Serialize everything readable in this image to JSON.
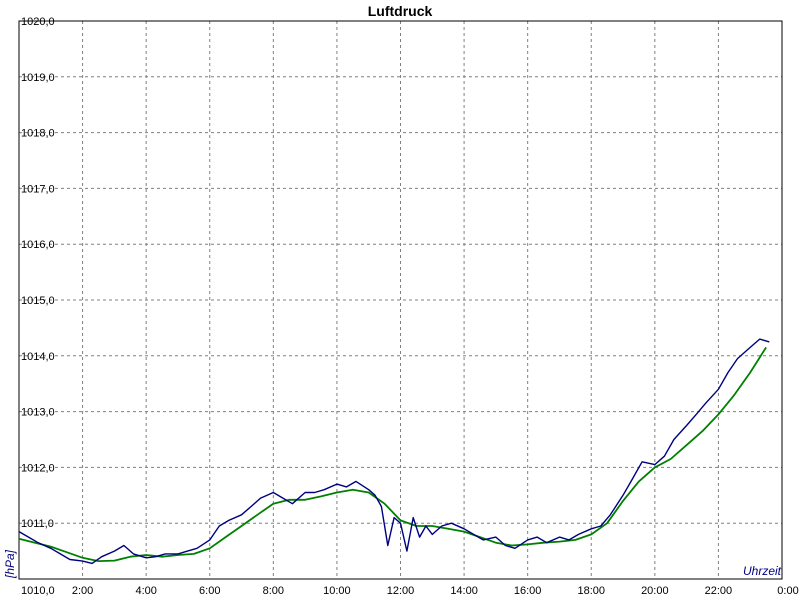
{
  "chart_data": {
    "type": "line",
    "title": "Luftdruck",
    "xlabel": "Uhrzeit",
    "ylabel": "[hPa]",
    "ylim": [
      1010.0,
      1020.0
    ],
    "xlim": [
      0,
      24
    ],
    "grid": true,
    "y_ticks": [
      "1010,0",
      "1011,0",
      "1012,0",
      "1013,0",
      "1014,0",
      "1015,0",
      "1016,0",
      "1017,0",
      "1018,0",
      "1019,0",
      "1020,0"
    ],
    "x_ticks": [
      "2:00",
      "4:00",
      "6:00",
      "8:00",
      "10:00",
      "12:00",
      "14:00",
      "16:00",
      "18:00",
      "20:00",
      "22:00",
      "0:00"
    ],
    "colors": {
      "raw": "#000080",
      "smoothed": "#008000",
      "axis_label": "#000080"
    },
    "series": [
      {
        "role": "raw",
        "x": [
          0.0,
          0.3,
          0.6,
          1.0,
          1.3,
          1.6,
          2.0,
          2.3,
          2.6,
          3.0,
          3.3,
          3.6,
          4.0,
          4.3,
          4.6,
          5.0,
          5.3,
          5.6,
          6.0,
          6.3,
          6.6,
          7.0,
          7.3,
          7.6,
          8.0,
          8.3,
          8.6,
          9.0,
          9.3,
          9.6,
          10.0,
          10.3,
          10.6,
          11.0,
          11.2,
          11.4,
          11.6,
          11.8,
          12.0,
          12.2,
          12.4,
          12.6,
          12.8,
          13.0,
          13.3,
          13.6,
          14.0,
          14.3,
          14.6,
          15.0,
          15.3,
          15.6,
          16.0,
          16.3,
          16.6,
          17.0,
          17.3,
          17.6,
          18.0,
          18.3,
          18.6,
          19.0,
          19.3,
          19.6,
          20.0,
          20.3,
          20.6,
          21.0,
          21.3,
          21.6,
          22.0,
          22.3,
          22.6,
          23.0,
          23.3,
          23.6
        ],
        "y": [
          1010.85,
          1010.75,
          1010.65,
          1010.55,
          1010.45,
          1010.35,
          1010.32,
          1010.28,
          1010.4,
          1010.5,
          1010.6,
          1010.45,
          1010.38,
          1010.4,
          1010.45,
          1010.45,
          1010.5,
          1010.55,
          1010.7,
          1010.95,
          1011.05,
          1011.15,
          1011.3,
          1011.45,
          1011.55,
          1011.45,
          1011.35,
          1011.55,
          1011.55,
          1011.6,
          1011.7,
          1011.65,
          1011.75,
          1011.6,
          1011.5,
          1011.3,
          1010.6,
          1011.1,
          1011.0,
          1010.5,
          1011.1,
          1010.75,
          1010.95,
          1010.8,
          1010.95,
          1011.0,
          1010.9,
          1010.8,
          1010.7,
          1010.75,
          1010.6,
          1010.55,
          1010.7,
          1010.75,
          1010.65,
          1010.75,
          1010.7,
          1010.8,
          1010.9,
          1010.95,
          1011.15,
          1011.5,
          1011.8,
          1012.1,
          1012.05,
          1012.2,
          1012.5,
          1012.75,
          1012.95,
          1013.15,
          1013.4,
          1013.7,
          1013.95,
          1014.15,
          1014.3,
          1014.25
        ]
      },
      {
        "role": "smoothed",
        "x": [
          0.0,
          0.5,
          1.0,
          1.5,
          2.0,
          2.5,
          3.0,
          3.5,
          4.0,
          4.5,
          5.0,
          5.5,
          6.0,
          6.5,
          7.0,
          7.5,
          8.0,
          8.5,
          9.0,
          9.5,
          10.0,
          10.5,
          11.0,
          11.5,
          12.0,
          12.5,
          13.0,
          13.5,
          14.0,
          14.5,
          15.0,
          15.5,
          16.0,
          16.5,
          17.0,
          17.5,
          18.0,
          18.5,
          19.0,
          19.5,
          20.0,
          20.5,
          21.0,
          21.5,
          22.0,
          22.5,
          23.0,
          23.5
        ],
        "y": [
          1010.72,
          1010.65,
          1010.58,
          1010.48,
          1010.38,
          1010.32,
          1010.33,
          1010.4,
          1010.43,
          1010.4,
          1010.43,
          1010.45,
          1010.55,
          1010.75,
          1010.95,
          1011.15,
          1011.35,
          1011.42,
          1011.42,
          1011.48,
          1011.55,
          1011.6,
          1011.55,
          1011.35,
          1011.05,
          1010.95,
          1010.95,
          1010.9,
          1010.85,
          1010.75,
          1010.65,
          1010.6,
          1010.62,
          1010.65,
          1010.67,
          1010.7,
          1010.8,
          1011.0,
          1011.4,
          1011.75,
          1012.0,
          1012.15,
          1012.4,
          1012.65,
          1012.95,
          1013.3,
          1013.7,
          1014.15
        ]
      }
    ]
  }
}
